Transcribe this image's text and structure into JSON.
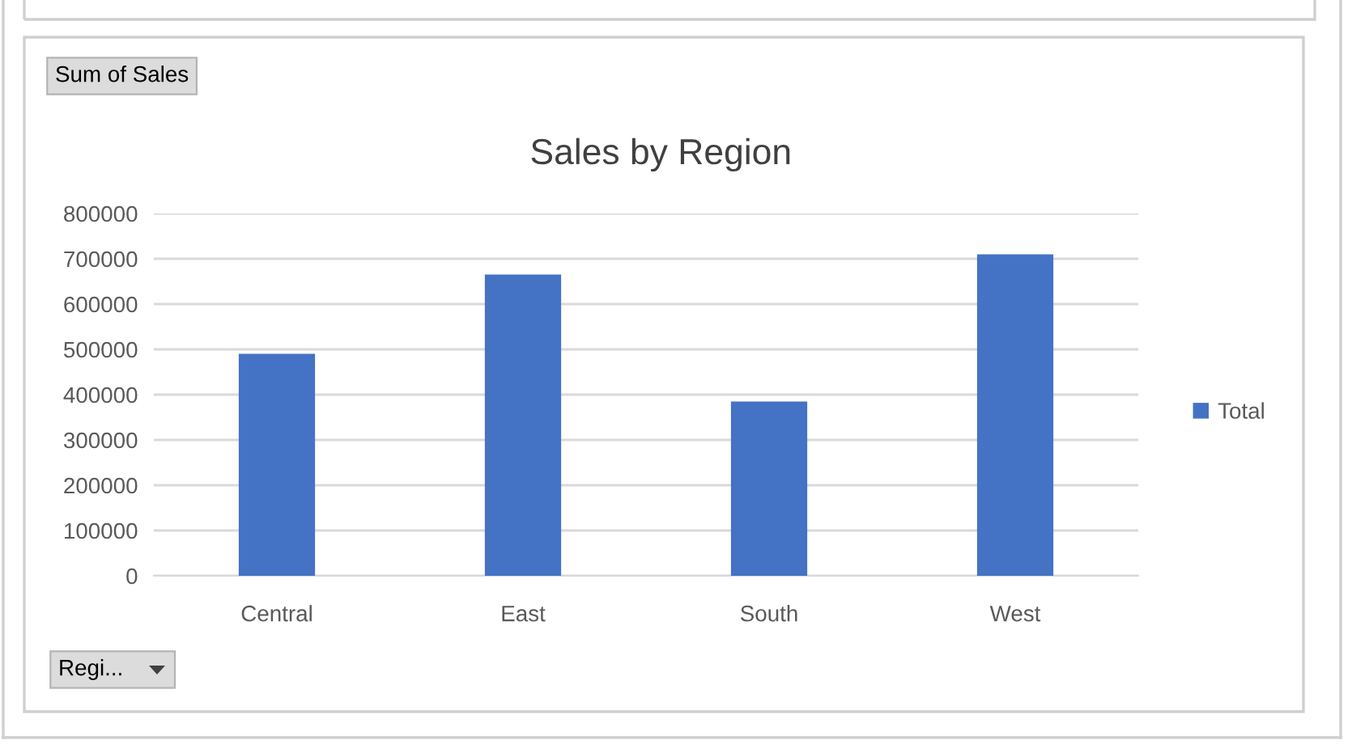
{
  "chart_data": {
    "type": "bar",
    "title": "Sales by Region",
    "categories": [
      "Central",
      "East",
      "South",
      "West"
    ],
    "series": [
      {
        "name": "Total",
        "color": "#4472c4",
        "values": [
          490000,
          665000,
          385000,
          710000
        ]
      }
    ],
    "ylim": [
      0,
      800000
    ],
    "yticks": [
      0,
      100000,
      200000,
      300000,
      400000,
      500000,
      600000,
      700000,
      800000
    ],
    "grid": "y",
    "legend": "right",
    "annotations": [
      "Sum of Sales",
      "Regi..."
    ]
  }
}
